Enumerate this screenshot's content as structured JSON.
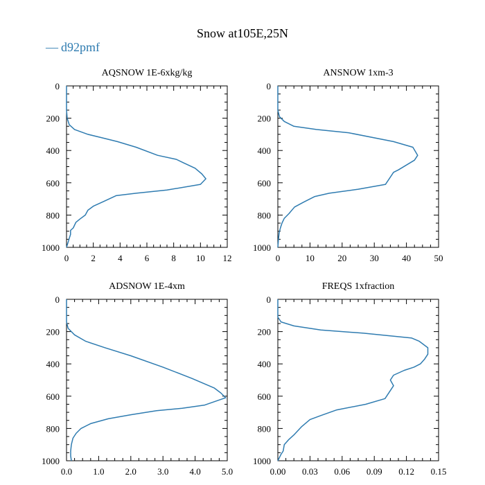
{
  "title": "Snow at105E,25N",
  "legend": {
    "label": "d92pmf",
    "symbol": "—",
    "color": "#2e7bb0"
  },
  "chart_data": [
    {
      "type": "line",
      "title": "AQSNOW  1E-6xkg/kg",
      "xlim": [
        0,
        12
      ],
      "ylim": [
        0,
        1000
      ],
      "y_inverted": true,
      "xticks": [
        0,
        2,
        4,
        6,
        8,
        10,
        12
      ],
      "xtick_labels": [
        "0",
        "2",
        "4",
        "6",
        "8",
        "10",
        "12"
      ],
      "yticks": [
        0,
        200,
        400,
        600,
        800,
        1000
      ],
      "ytick_labels": [
        "0",
        "200",
        "400",
        "600",
        "800",
        "1000"
      ],
      "series": [
        {
          "name": "d92pmf",
          "x": [
            0,
            0,
            0,
            0.05,
            0.2,
            0.6,
            1.6,
            2.6,
            3.8,
            5.2,
            6.8,
            8.2,
            8.7,
            9.6,
            10.1,
            10.4,
            10.0,
            7.5,
            5.2,
            3.7,
            2.8,
            2.0,
            1.6,
            1.4,
            1.0,
            0.7,
            0.5,
            0.3,
            0.3,
            0.2,
            0.15,
            0
          ],
          "y": [
            0,
            50,
            150,
            200,
            240,
            270,
            300,
            320,
            345,
            380,
            430,
            455,
            475,
            510,
            545,
            575,
            610,
            645,
            665,
            680,
            715,
            745,
            770,
            800,
            825,
            845,
            880,
            895,
            920,
            945,
            960,
            1000
          ]
        }
      ]
    },
    {
      "type": "line",
      "title": "ANSNOW  1xm-3",
      "xlim": [
        0,
        50
      ],
      "ylim": [
        0,
        1000
      ],
      "y_inverted": true,
      "xticks": [
        0,
        10,
        20,
        30,
        40,
        50
      ],
      "xtick_labels": [
        "0",
        "10",
        "20",
        "30",
        "40",
        "50"
      ],
      "yticks": [
        0,
        200,
        400,
        600,
        800,
        1000
      ],
      "ytick_labels": [
        "0",
        "200",
        "400",
        "600",
        "800",
        "1000"
      ],
      "series": [
        {
          "name": "d92pmf",
          "x": [
            0,
            0,
            0,
            0.5,
            2,
            5,
            12,
            22,
            36,
            42,
            43.5,
            42.5,
            40,
            37.5,
            36,
            33.5,
            25,
            16,
            11.5,
            8,
            5.2,
            3.5,
            2,
            1.3,
            0.8,
            0.4,
            0.2,
            0
          ],
          "y": [
            0,
            60,
            150,
            190,
            220,
            250,
            270,
            290,
            345,
            380,
            430,
            460,
            490,
            520,
            535,
            610,
            640,
            665,
            685,
            720,
            750,
            790,
            820,
            850,
            880,
            910,
            950,
            1000
          ]
        }
      ]
    },
    {
      "type": "line",
      "title": "ADSNOW  1E-4xm",
      "xlim": [
        0,
        5
      ],
      "ylim": [
        0,
        1000
      ],
      "y_inverted": true,
      "xticks": [
        0,
        1,
        2,
        3,
        4,
        5
      ],
      "xtick_labels": [
        "0.0",
        "1.0",
        "2.0",
        "3.0",
        "4.0",
        "5.0"
      ],
      "yticks": [
        0,
        200,
        400,
        600,
        800,
        1000
      ],
      "ytick_labels": [
        "0",
        "200",
        "400",
        "600",
        "800",
        "1000"
      ],
      "series": [
        {
          "name": "d92pmf",
          "x": [
            0,
            0,
            0,
            0.05,
            0.25,
            0.6,
            1.2,
            2.0,
            3.0,
            3.9,
            4.6,
            4.8,
            4.95,
            4.3,
            3.6,
            2.8,
            2.0,
            1.3,
            0.75,
            0.45,
            0.3,
            0.2,
            0.15,
            0.13,
            0.13,
            0.15
          ],
          "y": [
            0,
            50,
            140,
            180,
            220,
            260,
            300,
            350,
            420,
            490,
            550,
            580,
            610,
            655,
            675,
            690,
            715,
            740,
            770,
            800,
            830,
            860,
            900,
            940,
            970,
            1000
          ]
        }
      ]
    },
    {
      "type": "line",
      "title": "FREQS  1xfraction",
      "xlim": [
        0,
        0.15
      ],
      "ylim": [
        0,
        1000
      ],
      "y_inverted": true,
      "xticks": [
        0,
        0.03,
        0.06,
        0.09,
        0.12,
        0.15
      ],
      "xtick_labels": [
        "0.00",
        "0.03",
        "0.06",
        "0.09",
        "0.12",
        "0.15"
      ],
      "yticks": [
        0,
        200,
        400,
        600,
        800,
        1000
      ],
      "ytick_labels": [
        "0",
        "200",
        "400",
        "600",
        "800",
        "1000"
      ],
      "series": [
        {
          "name": "d92pmf",
          "x": [
            0,
            0,
            0,
            0.003,
            0.015,
            0.04,
            0.08,
            0.125,
            0.132,
            0.14,
            0.14,
            0.137,
            0.133,
            0.127,
            0.118,
            0.108,
            0.105,
            0.108,
            0.1,
            0.082,
            0.055,
            0.04,
            0.03,
            0.022,
            0.015,
            0.01,
            0.006,
            0.005,
            0.003,
            0
          ],
          "y": [
            0,
            60,
            110,
            140,
            165,
            190,
            210,
            240,
            260,
            300,
            340,
            370,
            400,
            420,
            440,
            470,
            500,
            535,
            615,
            650,
            685,
            720,
            745,
            790,
            840,
            870,
            900,
            940,
            960,
            1000
          ]
        }
      ]
    }
  ]
}
